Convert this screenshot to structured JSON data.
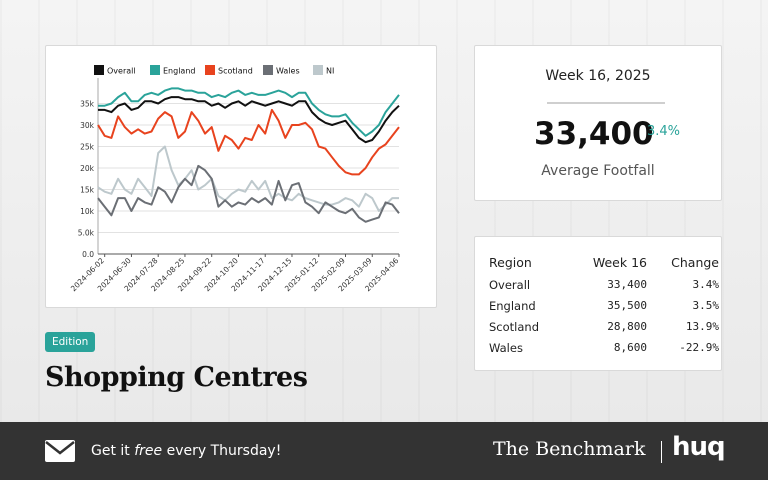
{
  "edition_badge": "Edition",
  "title": "Shopping Centres",
  "kpi": {
    "week": "Week 16, 2025",
    "value": "33,400",
    "change": "3.4%",
    "label": "Average Footfall"
  },
  "table": {
    "headers": [
      "Region",
      "Week 16",
      "Change"
    ],
    "rows": [
      {
        "region": "Overall",
        "value": "33,400",
        "change": "3.4%"
      },
      {
        "region": "England",
        "value": "35,500",
        "change": "3.5%"
      },
      {
        "region": "Scotland",
        "value": "28,800",
        "change": "13.9%"
      },
      {
        "region": "Wales",
        "value": "8,600",
        "change": "-22.9%"
      }
    ]
  },
  "footer": {
    "cta_before": "Get it ",
    "cta_em": "free",
    "cta_after": " every Thursday!",
    "brand": "The Benchmark",
    "logo": "huq",
    "icon": "mail-icon"
  },
  "chart_data": {
    "type": "line",
    "x_ticks": [
      "2024-06-02",
      "2024-06-30",
      "2024-07-28",
      "2024-08-25",
      "2024-09-22",
      "2024-10-20",
      "2024-11-17",
      "2024-12-15",
      "2025-01-12",
      "2025-02-09",
      "2025-03-09",
      "2025-04-06"
    ],
    "y_ticks": [
      0,
      5000,
      10000,
      15000,
      20000,
      25000,
      30000,
      35000
    ],
    "y_tick_labels": [
      "0.0",
      "5.0k",
      "10k",
      "15k",
      "20k",
      "25k",
      "30k",
      "35k"
    ],
    "ylim": [
      0,
      40000
    ],
    "weeks": 46,
    "grid": true,
    "legend": "top",
    "series": [
      {
        "name": "Overall",
        "color": "#111111",
        "values": [
          33500,
          33500,
          33000,
          34500,
          35000,
          33500,
          34000,
          35500,
          35500,
          35000,
          36000,
          36500,
          36500,
          36000,
          36000,
          35500,
          35500,
          34500,
          35000,
          34000,
          35000,
          35500,
          34500,
          35500,
          35000,
          34500,
          35000,
          35500,
          35000,
          34500,
          35500,
          35500,
          33000,
          31500,
          30500,
          30000,
          30500,
          31000,
          29000,
          27000,
          26000,
          26500,
          28500,
          31000,
          33000,
          34500
        ]
      },
      {
        "name": "England",
        "color": "#2aa39a",
        "values": [
          34500,
          34500,
          35000,
          36500,
          37500,
          35500,
          35500,
          37000,
          37500,
          37000,
          38000,
          38500,
          38500,
          38000,
          38000,
          37500,
          37500,
          36500,
          37000,
          36500,
          37500,
          38000,
          37000,
          37500,
          37000,
          37000,
          37500,
          38000,
          37500,
          36500,
          37500,
          37500,
          35000,
          33500,
          32500,
          32000,
          32000,
          32500,
          30500,
          29000,
          27500,
          28500,
          30000,
          33000,
          35000,
          37000
        ]
      },
      {
        "name": "Scotland",
        "color": "#e8431e",
        "values": [
          30000,
          27500,
          27000,
          32000,
          29500,
          28000,
          29000,
          28000,
          28500,
          31500,
          33000,
          32000,
          27000,
          28500,
          33000,
          31000,
          28000,
          29500,
          24000,
          27500,
          26500,
          24500,
          27000,
          26500,
          30000,
          28000,
          33500,
          31000,
          27000,
          30000,
          30000,
          30500,
          29000,
          25000,
          24500,
          22500,
          20500,
          19000,
          18500,
          18500,
          20000,
          22500,
          24500,
          25500,
          27500,
          29500
        ]
      },
      {
        "name": "Wales",
        "color": "#6b6f75",
        "values": [
          13000,
          11000,
          9000,
          13000,
          13000,
          10000,
          13000,
          12000,
          11500,
          15500,
          14500,
          12000,
          15500,
          17500,
          16000,
          20500,
          19500,
          17500,
          11000,
          12500,
          11000,
          12000,
          11500,
          13000,
          12000,
          13000,
          11500,
          17000,
          12500,
          16000,
          16500,
          12000,
          11000,
          9500,
          12000,
          11000,
          10000,
          9500,
          10500,
          8500,
          7500,
          8000,
          8500,
          12000,
          11500,
          9500
        ]
      },
      {
        "name": "NI",
        "color": "#bdc8cc",
        "values": [
          15500,
          14500,
          14000,
          17500,
          15000,
          14000,
          17500,
          15500,
          13500,
          23500,
          25000,
          19500,
          16000,
          17500,
          19500,
          15000,
          16000,
          17500,
          13500,
          12500,
          14000,
          15000,
          14500,
          17000,
          15000,
          17000,
          13000,
          14000,
          13000,
          12500,
          14000,
          13000,
          12500,
          12000,
          11500,
          11500,
          12000,
          13000,
          12500,
          11000,
          14000,
          13000,
          10000,
          11500,
          13000,
          13000
        ]
      }
    ]
  }
}
